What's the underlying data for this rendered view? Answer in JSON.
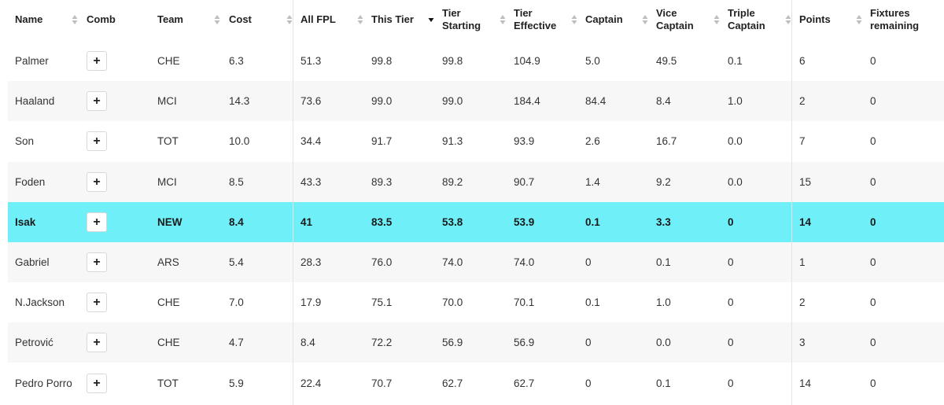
{
  "columns": [
    {
      "key": "name",
      "label": "Name",
      "sort": "none"
    },
    {
      "key": "comb",
      "label": "Comb",
      "sort": null
    },
    {
      "key": "team",
      "label": "Team",
      "sort": "none"
    },
    {
      "key": "cost",
      "label": "Cost",
      "sort": "none"
    },
    {
      "key": "all_fpl",
      "label": "All FPL",
      "sort": "none"
    },
    {
      "key": "this_tier",
      "label": "This Tier",
      "sort": "desc"
    },
    {
      "key": "tier_starting",
      "label": "Tier Starting",
      "sort": "none"
    },
    {
      "key": "tier_effective",
      "label": "Tier Effective",
      "sort": "none"
    },
    {
      "key": "captain",
      "label": "Captain",
      "sort": "none"
    },
    {
      "key": "vice_captain",
      "label": "Vice Captain",
      "sort": "none"
    },
    {
      "key": "triple_captain",
      "label": "Triple Captain",
      "sort": "none"
    },
    {
      "key": "points",
      "label": "Points",
      "sort": "none"
    },
    {
      "key": "fixtures_remaining",
      "label": "Fixtures remaining",
      "sort": null
    }
  ],
  "comb_button_label": "+",
  "highlight_color": "#6ff0f8",
  "rows": [
    {
      "name": "Palmer",
      "team": "CHE",
      "cost": "6.3",
      "all_fpl": "51.3",
      "this_tier": "99.8",
      "tier_starting": "99.8",
      "tier_effective": "104.9",
      "captain": "5.0",
      "vice_captain": "49.5",
      "triple_captain": "0.1",
      "points": "6",
      "fixtures_remaining": "0",
      "highlighted": false
    },
    {
      "name": "Haaland",
      "team": "MCI",
      "cost": "14.3",
      "all_fpl": "73.6",
      "this_tier": "99.0",
      "tier_starting": "99.0",
      "tier_effective": "184.4",
      "captain": "84.4",
      "vice_captain": "8.4",
      "triple_captain": "1.0",
      "points": "2",
      "fixtures_remaining": "0",
      "highlighted": false
    },
    {
      "name": "Son",
      "team": "TOT",
      "cost": "10.0",
      "all_fpl": "34.4",
      "this_tier": "91.7",
      "tier_starting": "91.3",
      "tier_effective": "93.9",
      "captain": "2.6",
      "vice_captain": "16.7",
      "triple_captain": "0.0",
      "points": "7",
      "fixtures_remaining": "0",
      "highlighted": false
    },
    {
      "name": "Foden",
      "team": "MCI",
      "cost": "8.5",
      "all_fpl": "43.3",
      "this_tier": "89.3",
      "tier_starting": "89.2",
      "tier_effective": "90.7",
      "captain": "1.4",
      "vice_captain": "9.2",
      "triple_captain": "0.0",
      "points": "15",
      "fixtures_remaining": "0",
      "highlighted": false
    },
    {
      "name": "Isak",
      "team": "NEW",
      "cost": "8.4",
      "all_fpl": "41",
      "this_tier": "83.5",
      "tier_starting": "53.8",
      "tier_effective": "53.9",
      "captain": "0.1",
      "vice_captain": "3.3",
      "triple_captain": "0",
      "points": "14",
      "fixtures_remaining": "0",
      "highlighted": true
    },
    {
      "name": "Gabriel",
      "team": "ARS",
      "cost": "5.4",
      "all_fpl": "28.3",
      "this_tier": "76.0",
      "tier_starting": "74.0",
      "tier_effective": "74.0",
      "captain": "0",
      "vice_captain": "0.1",
      "triple_captain": "0",
      "points": "1",
      "fixtures_remaining": "0",
      "highlighted": false
    },
    {
      "name": "N.Jackson",
      "team": "CHE",
      "cost": "7.0",
      "all_fpl": "17.9",
      "this_tier": "75.1",
      "tier_starting": "70.0",
      "tier_effective": "70.1",
      "captain": "0.1",
      "vice_captain": "1.0",
      "triple_captain": "0",
      "points": "2",
      "fixtures_remaining": "0",
      "highlighted": false
    },
    {
      "name": "Petrović",
      "team": "CHE",
      "cost": "4.7",
      "all_fpl": "8.4",
      "this_tier": "72.2",
      "tier_starting": "56.9",
      "tier_effective": "56.9",
      "captain": "0",
      "vice_captain": "0.0",
      "triple_captain": "0",
      "points": "3",
      "fixtures_remaining": "0",
      "highlighted": false
    },
    {
      "name": "Pedro Porro",
      "team": "TOT",
      "cost": "5.9",
      "all_fpl": "22.4",
      "this_tier": "70.7",
      "tier_starting": "62.7",
      "tier_effective": "62.7",
      "captain": "0",
      "vice_captain": "0.1",
      "triple_captain": "0",
      "points": "14",
      "fixtures_remaining": "0",
      "highlighted": false
    }
  ]
}
